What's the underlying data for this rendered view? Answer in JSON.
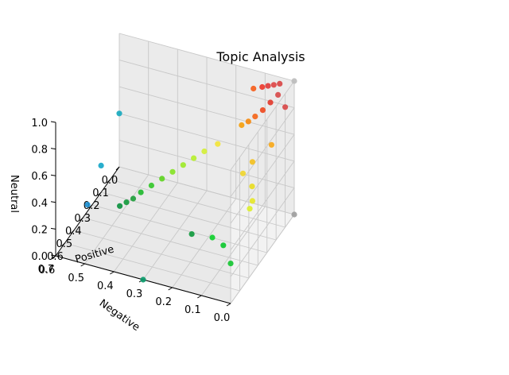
{
  "chart_data": {
    "type": "scatter3d",
    "title": "Topic Analysis",
    "xlabel": "Positive",
    "ylabel": "Negative",
    "zlabel": "Neutral",
    "xlim": [
      0.0,
      0.7
    ],
    "ylim": [
      0.0,
      0.6
    ],
    "zlim": [
      0.0,
      1.0
    ],
    "xticks": [
      "0.0",
      "0.1",
      "0.2",
      "0.3",
      "0.4",
      "0.5",
      "0.6",
      "0.7"
    ],
    "yticks": [
      "0.0",
      "0.1",
      "0.2",
      "0.3",
      "0.4",
      "0.5",
      "0.6"
    ],
    "zticks": [
      "0.0",
      "0.2",
      "0.4",
      "0.6",
      "0.8",
      "1.0"
    ],
    "grid": true,
    "points": [
      {
        "x": 0.0,
        "y": 0.0,
        "z": 1.0,
        "color": "#bdbdbd"
      },
      {
        "x": 0.0,
        "y": 0.0,
        "z": 0.0,
        "color": "#9e9e9e"
      },
      {
        "x": 0.05,
        "y": 0.04,
        "z": 0.92,
        "color": "#d84b4b"
      },
      {
        "x": 0.07,
        "y": 0.06,
        "z": 0.87,
        "color": "#e23b2e"
      },
      {
        "x": 0.09,
        "y": 0.08,
        "z": 0.82,
        "color": "#ef4a1f"
      },
      {
        "x": 0.11,
        "y": 0.1,
        "z": 0.78,
        "color": "#f4661a"
      },
      {
        "x": 0.12,
        "y": 0.12,
        "z": 0.74,
        "color": "#f58a10"
      },
      {
        "x": 0.13,
        "y": 0.14,
        "z": 0.71,
        "color": "#f5a00e"
      },
      {
        "x": 0.25,
        "y": 0.0,
        "z": 0.76,
        "color": "#f7a81a"
      },
      {
        "x": 0.1,
        "y": 0.0,
        "z": 0.9,
        "color": "#d94a4a"
      },
      {
        "x": 0.0,
        "y": 0.05,
        "z": 0.95,
        "color": "#d84646"
      },
      {
        "x": 0.0,
        "y": 0.07,
        "z": 0.93,
        "color": "#dd4747"
      },
      {
        "x": 0.0,
        "y": 0.09,
        "z": 0.91,
        "color": "#e03c3c"
      },
      {
        "x": 0.0,
        "y": 0.11,
        "z": 0.89,
        "color": "#ee3a2c"
      },
      {
        "x": 0.0,
        "y": 0.14,
        "z": 0.86,
        "color": "#f55e1c"
      },
      {
        "x": 0.3,
        "y": 0.05,
        "z": 0.65,
        "color": "#f3c020"
      },
      {
        "x": 0.34,
        "y": 0.07,
        "z": 0.59,
        "color": "#f0d630"
      },
      {
        "x": 0.4,
        "y": 0.02,
        "z": 0.58,
        "color": "#e8dc22"
      },
      {
        "x": 0.46,
        "y": 0.0,
        "z": 0.54,
        "color": "#e6e72a"
      },
      {
        "x": 0.49,
        "y": 0.0,
        "z": 0.51,
        "color": "#dcef2f"
      },
      {
        "x": 0.2,
        "y": 0.2,
        "z": 0.6,
        "color": "#f2e43a"
      },
      {
        "x": 0.22,
        "y": 0.24,
        "z": 0.54,
        "color": "#d4ef38"
      },
      {
        "x": 0.24,
        "y": 0.27,
        "z": 0.49,
        "color": "#b6ef2f"
      },
      {
        "x": 0.26,
        "y": 0.3,
        "z": 0.44,
        "color": "#9ee92a"
      },
      {
        "x": 0.28,
        "y": 0.33,
        "z": 0.39,
        "color": "#86e326"
      },
      {
        "x": 0.3,
        "y": 0.36,
        "z": 0.34,
        "color": "#5ed422"
      },
      {
        "x": 0.32,
        "y": 0.39,
        "z": 0.29,
        "color": "#35c72b"
      },
      {
        "x": 0.34,
        "y": 0.42,
        "z": 0.24,
        "color": "#1fb82f"
      },
      {
        "x": 0.36,
        "y": 0.44,
        "z": 0.2,
        "color": "#1f9f3c"
      },
      {
        "x": 0.37,
        "y": 0.46,
        "z": 0.17,
        "color": "#139a3d"
      },
      {
        "x": 0.38,
        "y": 0.48,
        "z": 0.14,
        "color": "#0d9140"
      },
      {
        "x": 0.7,
        "y": 0.0,
        "z": 0.3,
        "color": "#17c633"
      },
      {
        "x": 0.58,
        "y": 0.1,
        "z": 0.32,
        "color": "#0fcf2c"
      },
      {
        "x": 0.55,
        "y": 0.18,
        "z": 0.27,
        "color": "#119a3e"
      },
      {
        "x": 0.62,
        "y": 0.05,
        "z": 0.33,
        "color": "#0ec72f"
      },
      {
        "x": 0.7,
        "y": 0.3,
        "z": 0.0,
        "color": "#0b9a6a"
      },
      {
        "x": 0.35,
        "y": 0.6,
        "z": 0.05,
        "color": "#1d8fd0"
      },
      {
        "x": 0.2,
        "y": 0.6,
        "z": 0.2,
        "color": "#17a7c9"
      },
      {
        "x": 0.0,
        "y": 0.6,
        "z": 0.4,
        "color": "#19a9be"
      }
    ]
  }
}
